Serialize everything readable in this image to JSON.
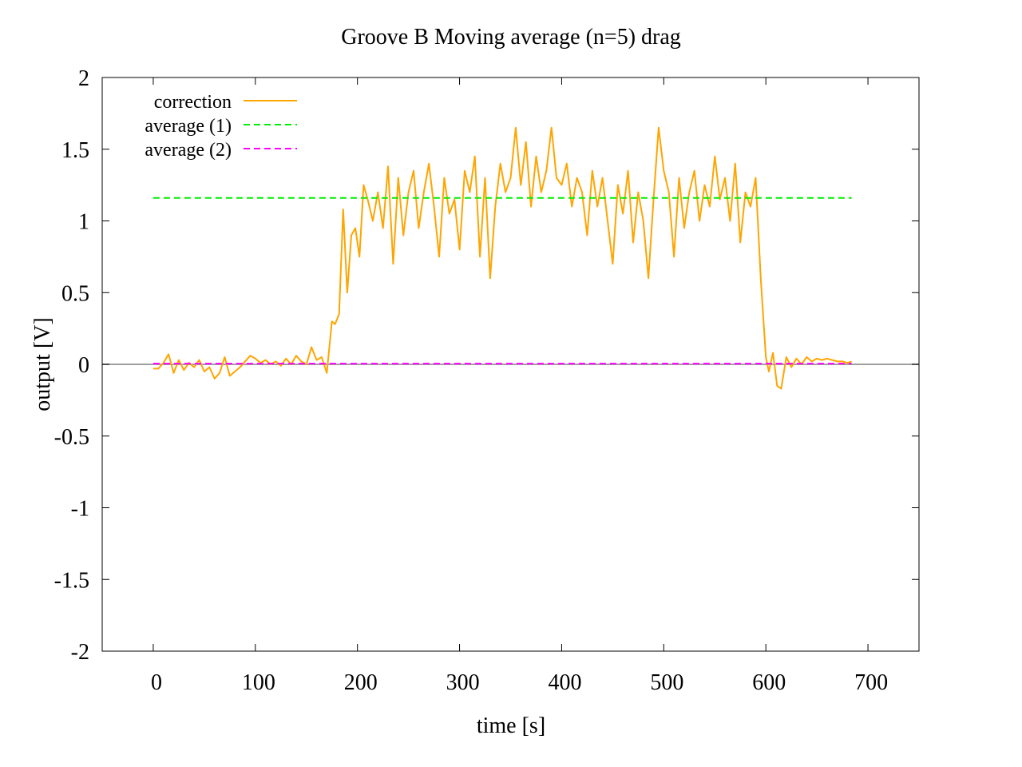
{
  "chart_data": {
    "type": "line",
    "title": "Groove B  Moving average (n=5) drag",
    "xlabel": "time [s]",
    "ylabel": "output [V]",
    "xlim": [
      -50,
      750
    ],
    "ylim": [
      -2,
      2
    ],
    "x_ticks": [
      0,
      100,
      200,
      300,
      400,
      500,
      600,
      700
    ],
    "x_tick_labels": [
      "0",
      "100",
      "200",
      "300",
      "400",
      "500",
      "600",
      "700"
    ],
    "y_ticks": [
      2,
      1.5,
      1,
      0.5,
      0,
      -0.5,
      -1,
      -1.5,
      -2
    ],
    "y_tick_labels": [
      "2",
      "1.5",
      "1",
      "0.5",
      "0",
      "-0.5",
      "-1",
      "-1.5",
      "-2"
    ],
    "zero_line": true,
    "grid": false,
    "legend_position": "top-left",
    "series": [
      {
        "name": "correction",
        "color": "#ffa500",
        "style": "solid",
        "x": [
          0,
          5,
          10,
          15,
          20,
          25,
          30,
          35,
          40,
          45,
          50,
          55,
          60,
          65,
          70,
          75,
          80,
          85,
          90,
          95,
          100,
          105,
          110,
          115,
          120,
          125,
          130,
          135,
          140,
          145,
          150,
          155,
          160,
          165,
          170,
          175,
          178,
          182,
          186,
          190,
          194,
          198,
          202,
          206,
          210,
          215,
          220,
          225,
          230,
          235,
          240,
          245,
          250,
          255,
          260,
          265,
          270,
          275,
          280,
          285,
          290,
          295,
          300,
          305,
          310,
          315,
          320,
          325,
          330,
          335,
          340,
          345,
          350,
          355,
          360,
          365,
          370,
          375,
          380,
          385,
          390,
          395,
          400,
          405,
          410,
          415,
          420,
          425,
          430,
          435,
          440,
          445,
          450,
          455,
          460,
          465,
          470,
          475,
          480,
          485,
          490,
          495,
          500,
          505,
          510,
          515,
          520,
          525,
          530,
          535,
          540,
          545,
          550,
          555,
          560,
          565,
          570,
          575,
          580,
          585,
          590,
          595,
          600,
          603,
          607,
          611,
          615,
          620,
          625,
          630,
          635,
          640,
          645,
          650,
          655,
          660,
          665,
          670,
          675,
          680,
          684
        ],
        "y": [
          -0.03,
          -0.03,
          0.01,
          0.07,
          -0.06,
          0.03,
          -0.04,
          0.01,
          -0.02,
          0.03,
          -0.05,
          -0.02,
          -0.1,
          -0.06,
          0.05,
          -0.08,
          -0.05,
          -0.02,
          0.02,
          0.06,
          0.04,
          0.01,
          0.03,
          0.0,
          0.02,
          -0.01,
          0.04,
          0.0,
          0.06,
          0.02,
          0.0,
          0.12,
          0.03,
          0.05,
          -0.06,
          0.3,
          0.28,
          0.35,
          1.08,
          0.5,
          0.9,
          0.95,
          0.75,
          1.25,
          1.15,
          1.0,
          1.2,
          0.95,
          1.38,
          0.7,
          1.3,
          0.9,
          1.2,
          1.35,
          0.95,
          1.2,
          1.4,
          1.1,
          0.75,
          1.3,
          1.05,
          1.15,
          0.8,
          1.35,
          1.2,
          1.45,
          0.75,
          1.3,
          0.6,
          1.1,
          1.4,
          1.2,
          1.3,
          1.65,
          1.25,
          1.55,
          1.1,
          1.45,
          1.2,
          1.35,
          1.65,
          1.3,
          1.25,
          1.4,
          1.1,
          1.3,
          1.2,
          0.9,
          1.35,
          1.1,
          1.3,
          1.0,
          0.7,
          1.25,
          1.05,
          1.35,
          0.85,
          1.2,
          1.0,
          0.6,
          1.15,
          1.65,
          1.35,
          1.2,
          0.75,
          1.3,
          0.95,
          1.2,
          1.35,
          1.0,
          1.25,
          1.1,
          1.45,
          1.15,
          1.3,
          1.0,
          1.4,
          0.85,
          1.2,
          1.1,
          1.3,
          0.6,
          0.05,
          -0.05,
          0.08,
          -0.15,
          -0.17,
          0.05,
          -0.02,
          0.04,
          0.0,
          0.05,
          0.02,
          0.04,
          0.03,
          0.04,
          0.03,
          0.02,
          0.02,
          0.01,
          0.02
        ]
      },
      {
        "name": "average (1)",
        "color": "#00ee00",
        "style": "dashed",
        "x": [
          0,
          684
        ],
        "y": [
          1.16,
          1.16
        ]
      },
      {
        "name": "average (2)",
        "color": "#ff00ff",
        "style": "dashed",
        "x": [
          0,
          684
        ],
        "y": [
          0.005,
          0.005
        ]
      }
    ]
  }
}
